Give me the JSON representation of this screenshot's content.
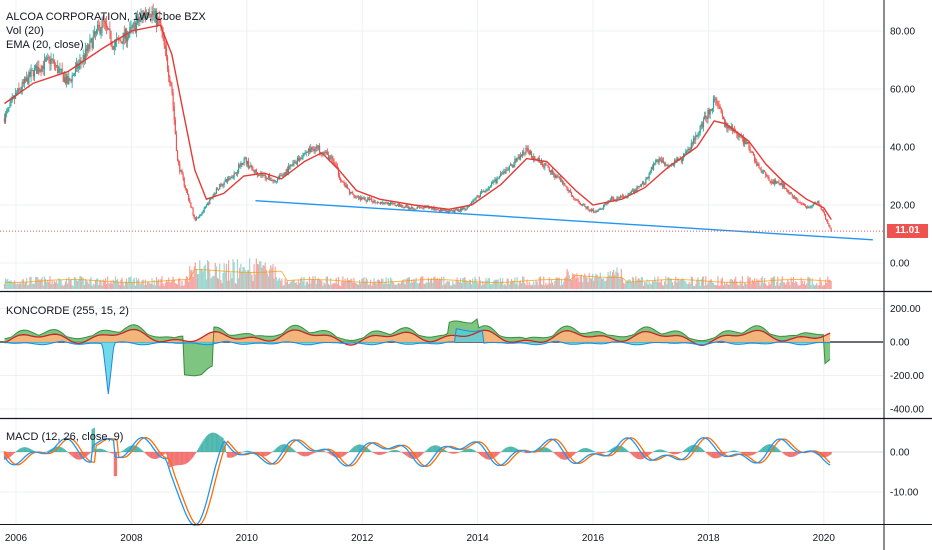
{
  "colors": {
    "up": "#26a69a",
    "down": "#ef5350",
    "ema": "#e53935",
    "trendline": "#2196f3",
    "last_price": "#ef5350",
    "macd": "#2196f3",
    "signal": "#ff6d00",
    "koncorde_green": "#388e3c",
    "koncorde_orange": "#ffb27a",
    "koncorde_blue": "#1e88e5",
    "koncorde_cyan": "#4dd0e1",
    "grid": "#eef0f3",
    "pane_border": "#131722"
  },
  "main_pane": {
    "title": "ALCOA CORPORATION, 1W, Cboe BZX",
    "vol_label": "Vol (20)",
    "ema_label": "EMA (20, close)",
    "y_ticks": [
      "80.00",
      "60.00",
      "40.00",
      "20.00",
      "0.00"
    ],
    "last_price": "11.01"
  },
  "koncorde_pane": {
    "label": "KONCORDE (255, 15, 2)",
    "y_ticks": [
      "200.00",
      "0.00",
      "-200.00",
      "-400.00"
    ]
  },
  "macd_pane": {
    "label": "MACD (12, 26, close, 9)",
    "y_ticks": [
      "0.00",
      "-10.00"
    ]
  },
  "x_axis": {
    "labels": [
      "2006",
      "2008",
      "2010",
      "2012",
      "2014",
      "2016",
      "2018",
      "2020"
    ]
  },
  "chart_data": {
    "type": "line",
    "title": "ALCOA CORPORATION, 1W, Cboe BZX",
    "x_unit": "year",
    "price": {
      "name": "close",
      "points": [
        [
          2005.8,
          50
        ],
        [
          2006.0,
          58
        ],
        [
          2006.3,
          66
        ],
        [
          2006.6,
          70
        ],
        [
          2006.9,
          62
        ],
        [
          2007.2,
          72
        ],
        [
          2007.5,
          83
        ],
        [
          2007.7,
          75
        ],
        [
          2008.0,
          80
        ],
        [
          2008.3,
          88
        ],
        [
          2008.5,
          82
        ],
        [
          2008.7,
          60
        ],
        [
          2008.8,
          35
        ],
        [
          2008.95,
          25
        ],
        [
          2009.1,
          15
        ],
        [
          2009.25,
          18
        ],
        [
          2009.5,
          26
        ],
        [
          2009.8,
          31
        ],
        [
          2009.95,
          36
        ],
        [
          2010.1,
          32
        ],
        [
          2010.3,
          30
        ],
        [
          2010.5,
          28
        ],
        [
          2010.75,
          33
        ],
        [
          2011.0,
          38
        ],
        [
          2011.2,
          40
        ],
        [
          2011.35,
          38
        ],
        [
          2011.5,
          35
        ],
        [
          2011.65,
          28
        ],
        [
          2011.8,
          24
        ],
        [
          2012.0,
          22
        ],
        [
          2012.3,
          21
        ],
        [
          2012.6,
          20
        ],
        [
          2012.9,
          19
        ],
        [
          2013.2,
          19
        ],
        [
          2013.5,
          17.5
        ],
        [
          2013.8,
          19
        ],
        [
          2014.0,
          23
        ],
        [
          2014.3,
          28
        ],
        [
          2014.6,
          34
        ],
        [
          2014.85,
          39
        ],
        [
          2015.0,
          36
        ],
        [
          2015.2,
          33
        ],
        [
          2015.45,
          28
        ],
        [
          2015.7,
          22
        ],
        [
          2015.95,
          18
        ],
        [
          2016.1,
          18
        ],
        [
          2016.3,
          22
        ],
        [
          2016.6,
          23
        ],
        [
          2016.9,
          28
        ],
        [
          2017.1,
          36
        ],
        [
          2017.3,
          34
        ],
        [
          2017.55,
          36
        ],
        [
          2017.8,
          44
        ],
        [
          2018.0,
          52
        ],
        [
          2018.1,
          56
        ],
        [
          2018.2,
          52
        ],
        [
          2018.3,
          47
        ],
        [
          2018.5,
          45
        ],
        [
          2018.7,
          40
        ],
        [
          2018.9,
          32
        ],
        [
          2019.1,
          28
        ],
        [
          2019.3,
          27
        ],
        [
          2019.5,
          22
        ],
        [
          2019.7,
          19
        ],
        [
          2019.9,
          21
        ],
        [
          2020.0,
          17
        ],
        [
          2020.1,
          12
        ],
        [
          2020.13,
          11.01
        ]
      ]
    },
    "ema_20": {
      "name": "EMA (20, close)",
      "points": [
        [
          2005.8,
          55
        ],
        [
          2006.3,
          62
        ],
        [
          2006.9,
          66
        ],
        [
          2007.5,
          74
        ],
        [
          2008.0,
          80
        ],
        [
          2008.5,
          82
        ],
        [
          2008.7,
          72
        ],
        [
          2008.9,
          52
        ],
        [
          2009.1,
          32
        ],
        [
          2009.3,
          22
        ],
        [
          2009.6,
          24
        ],
        [
          2009.95,
          30
        ],
        [
          2010.3,
          31
        ],
        [
          2010.6,
          29
        ],
        [
          2011.0,
          35
        ],
        [
          2011.3,
          38
        ],
        [
          2011.6,
          32
        ],
        [
          2011.9,
          25
        ],
        [
          2012.3,
          22
        ],
        [
          2012.9,
          20
        ],
        [
          2013.5,
          18.5
        ],
        [
          2013.9,
          20
        ],
        [
          2014.4,
          27
        ],
        [
          2014.85,
          36
        ],
        [
          2015.2,
          35
        ],
        [
          2015.7,
          25
        ],
        [
          2016.0,
          20
        ],
        [
          2016.5,
          22
        ],
        [
          2016.9,
          26
        ],
        [
          2017.3,
          33
        ],
        [
          2017.8,
          40
        ],
        [
          2018.1,
          49
        ],
        [
          2018.3,
          48
        ],
        [
          2018.7,
          42
        ],
        [
          2019.0,
          34
        ],
        [
          2019.3,
          28
        ],
        [
          2019.7,
          22
        ],
        [
          2020.0,
          19
        ],
        [
          2020.13,
          15
        ]
      ]
    },
    "trendline": {
      "name": "trendline",
      "points": [
        [
          2010.15,
          21.5
        ],
        [
          2020.85,
          8.0
        ]
      ]
    },
    "ylim": [
      -9,
      95
    ],
    "koncorde_ylim": [
      -440,
      270
    ],
    "macd_ylim": [
      -18,
      8
    ]
  }
}
